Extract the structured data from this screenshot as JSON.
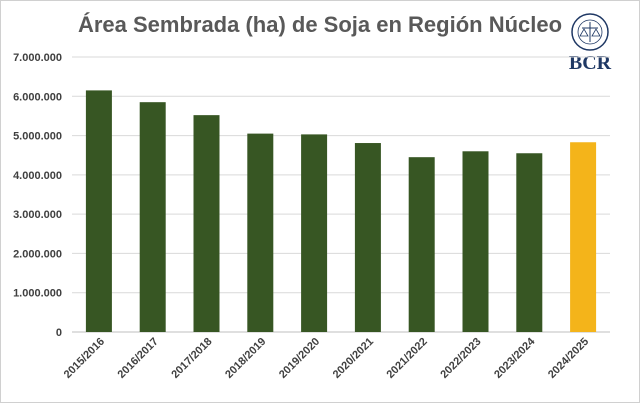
{
  "chart_data": {
    "type": "bar",
    "title": "Área Sembrada (ha) de Soja en Región Núcleo",
    "categories": [
      "2015/2016",
      "2016/2017",
      "2017/2018",
      "2018/2019",
      "2019/2020",
      "2020/2021",
      "2021/2022",
      "2022/2023",
      "2023/2024",
      "2024/2025"
    ],
    "values": [
      6150000,
      5850000,
      5520000,
      5050000,
      5030000,
      4810000,
      4450000,
      4600000,
      4550000,
      4830000
    ],
    "ylim": [
      0,
      7000000
    ],
    "yticks": [
      "0",
      "1.000.000",
      "2.000.000",
      "3.000.000",
      "4.000.000",
      "5.000.000",
      "6.000.000",
      "7.000.000"
    ],
    "grid": true,
    "colors": {
      "default": "#375623",
      "highlight": "#F4B41A"
    },
    "highlight_index": 9
  },
  "logo": {
    "text": "BCR"
  }
}
